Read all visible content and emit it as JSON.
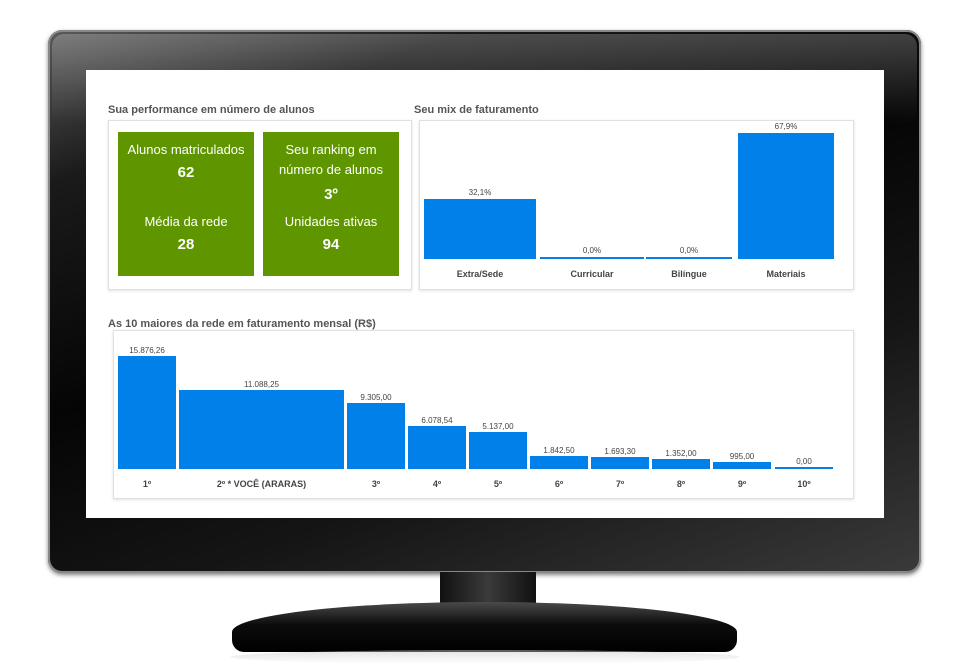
{
  "performance": {
    "title": "Sua performance em número de alunos",
    "tiles": [
      {
        "label": "Alunos matriculados",
        "value": "62",
        "label2": "Média da rede",
        "value2": "28"
      },
      {
        "label": "Seu ranking em número de alunos",
        "value": "3º",
        "label2": "Unidades ativas",
        "value2": "94"
      }
    ]
  },
  "mix": {
    "title": "Seu mix de faturamento",
    "chart_data": {
      "type": "bar",
      "categories": [
        "Extra/Sede",
        "Curricular",
        "Bilíngue",
        "Materiais"
      ],
      "values": [
        32.1,
        0.0,
        0.0,
        67.9
      ],
      "value_labels": [
        "32,1%",
        "0,0%",
        "0,0%",
        "67,9%"
      ],
      "ylim": [
        0,
        70
      ]
    }
  },
  "top10": {
    "title": "As 10 maiores da rede em faturamento mensal (R$)",
    "chart_data": {
      "type": "bar",
      "categories": [
        "1º",
        "2º * VOCÊ (ARARAS)",
        "3º",
        "4º",
        "5º",
        "6º",
        "7º",
        "8º",
        "9º",
        "10º"
      ],
      "values": [
        15876.26,
        11088.25,
        9305.0,
        6078.54,
        5137.0,
        1842.5,
        1693.3,
        1352.0,
        995.0,
        0.0
      ],
      "value_labels": [
        "15.876,26",
        "11.088,25",
        "9.305,00",
        "6.078,54",
        "5.137,00",
        "1.842,50",
        "1.693,30",
        "1.352,00",
        "995,00",
        "0,00"
      ],
      "ylim": [
        0,
        16000
      ]
    }
  },
  "colors": {
    "tile": "#5f9600",
    "bar": "#0080e8"
  }
}
